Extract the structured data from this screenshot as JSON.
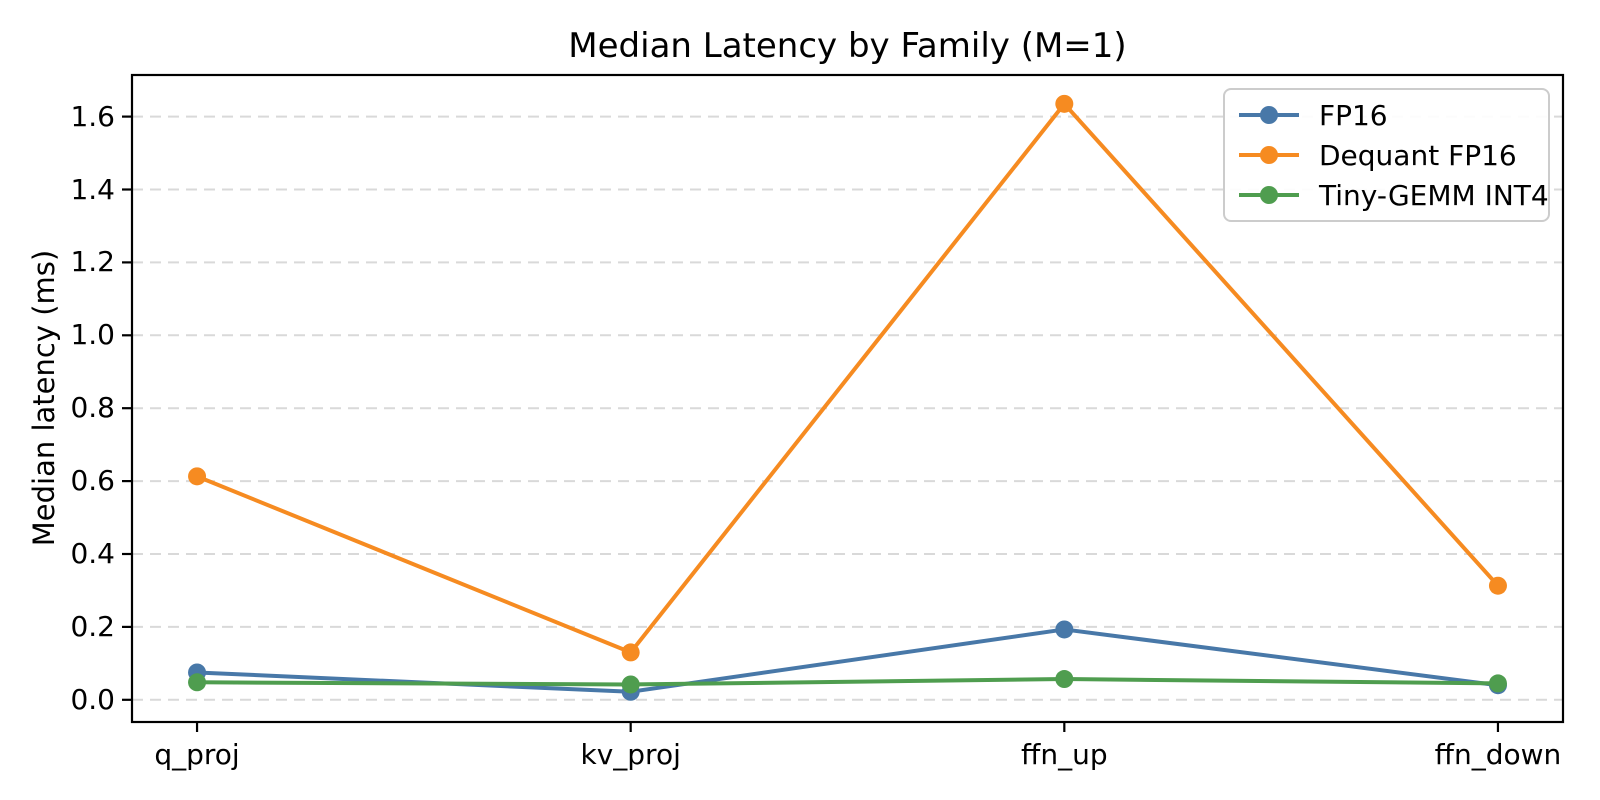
{
  "figure": {
    "title": "Median Latency by Family (M=1)",
    "ylabel": "Median latency (ms)"
  },
  "chart_data": {
    "type": "line",
    "title": "Median Latency by Family (M=1)",
    "xlabel": "",
    "ylabel": "Median latency (ms)",
    "categories": [
      "q_proj",
      "kv_proj",
      "ffn_up",
      "ffn_down"
    ],
    "series": [
      {
        "name": "FP16",
        "color": "#4878a8",
        "values": [
          0.075,
          0.022,
          0.193,
          0.04
        ]
      },
      {
        "name": "Dequant FP16",
        "color": "#f68b21",
        "values": [
          0.613,
          0.13,
          1.635,
          0.313
        ]
      },
      {
        "name": "Tiny-GEMM INT4",
        "color": "#4f9d4f",
        "values": [
          0.048,
          0.042,
          0.057,
          0.045
        ]
      }
    ],
    "ytick_labels": [
      "0.0",
      "0.2",
      "0.4",
      "0.6",
      "0.8",
      "1.0",
      "1.2",
      "1.4",
      "1.6"
    ],
    "yticks": [
      0.0,
      0.2,
      0.4,
      0.6,
      0.8,
      1.0,
      1.2,
      1.4,
      1.6
    ],
    "ylim": [
      -0.061,
      1.716
    ],
    "grid": "horizontal-dashed",
    "legend_position": "upper right",
    "marker": "circle",
    "colors": {
      "grid": "#d9d9d9",
      "spine": "#000000",
      "text": "#000000",
      "legend_border": "#cccccc"
    }
  }
}
